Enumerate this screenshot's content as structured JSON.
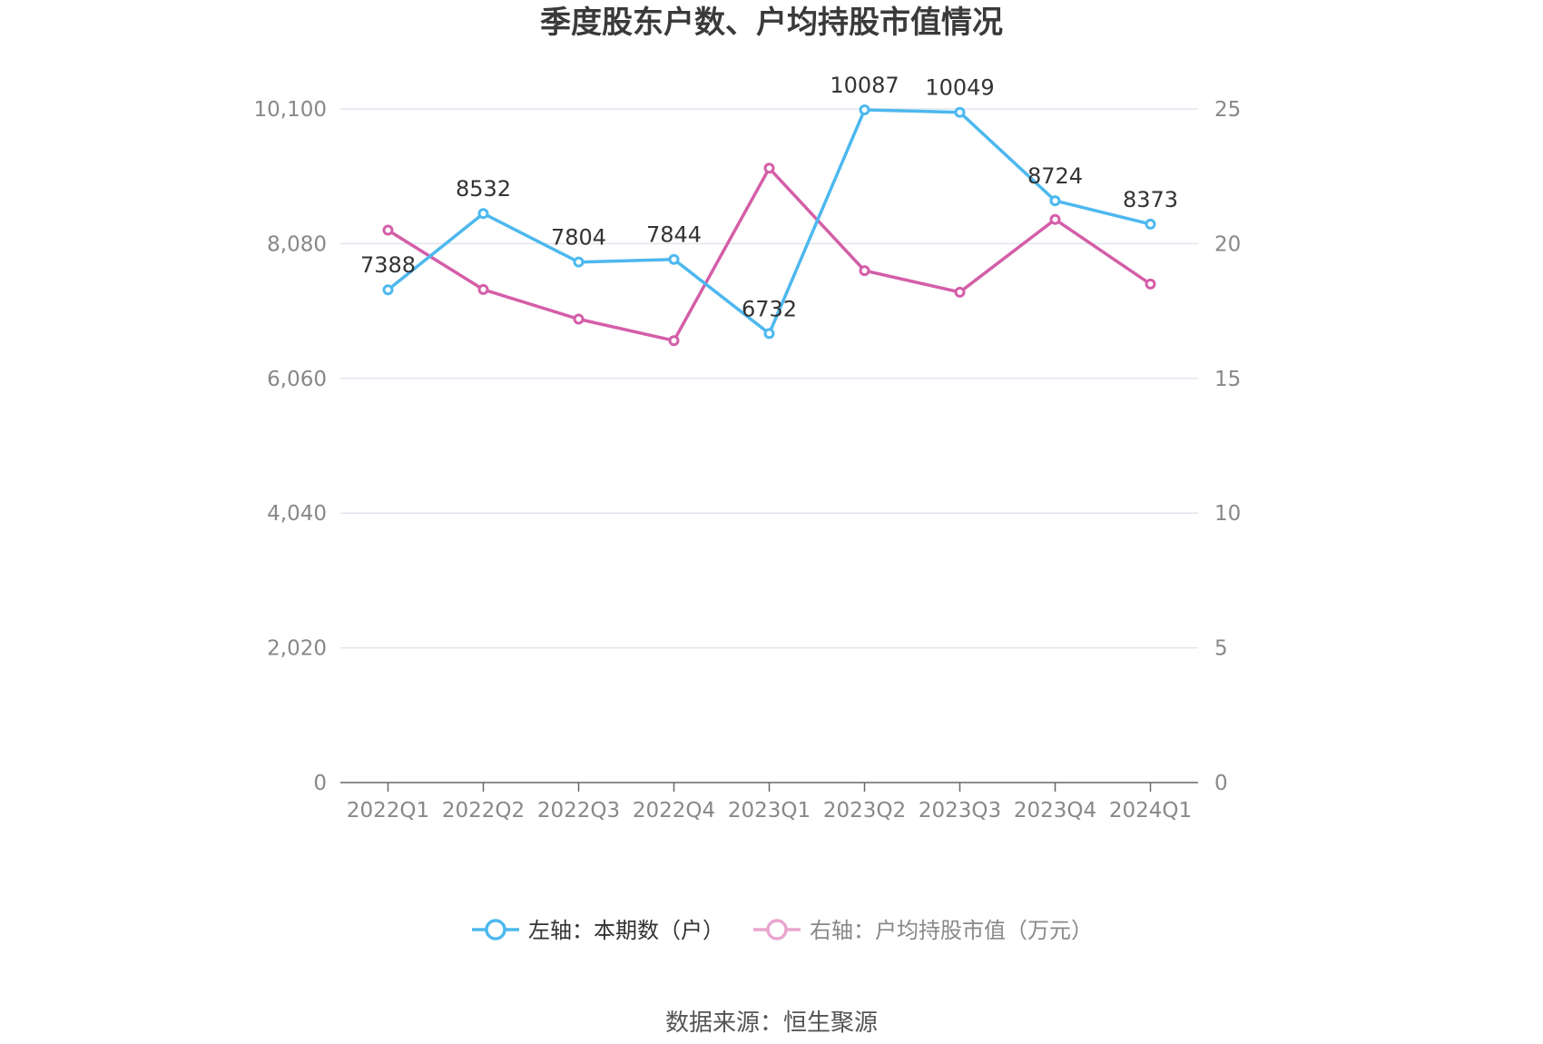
{
  "chart_data": {
    "type": "line",
    "title": "季度股东户数、户均持股市值情况",
    "categories": [
      "2022Q1",
      "2022Q2",
      "2022Q3",
      "2022Q4",
      "2023Q1",
      "2023Q2",
      "2023Q3",
      "2023Q4",
      "2024Q1"
    ],
    "left_axis": {
      "ticks": [
        "0",
        "2,020",
        "4,040",
        "6,060",
        "8,080",
        "10,100"
      ],
      "ylim": [
        0,
        10100
      ]
    },
    "right_axis": {
      "ticks": [
        "0",
        "5",
        "10",
        "15",
        "20",
        "25"
      ],
      "ylim": [
        0,
        25
      ]
    },
    "series": [
      {
        "name": "左轴：本期数（户）",
        "axis": "left",
        "color": "#4db8ef",
        "values": [
          7388,
          8532,
          7804,
          7844,
          6732,
          10087,
          10049,
          8724,
          8373
        ],
        "show_labels": true
      },
      {
        "name": "右轴：户均持股市值（万元）",
        "axis": "right",
        "color": "#d45ea8",
        "legend_color": "#e8a6cf",
        "values": [
          20.5,
          18.3,
          17.2,
          16.4,
          22.8,
          19.0,
          18.2,
          20.9,
          18.5
        ],
        "show_labels": false
      }
    ],
    "grid": true,
    "legend_position": "bottom"
  },
  "source_text": "数据来源：恒生聚源"
}
